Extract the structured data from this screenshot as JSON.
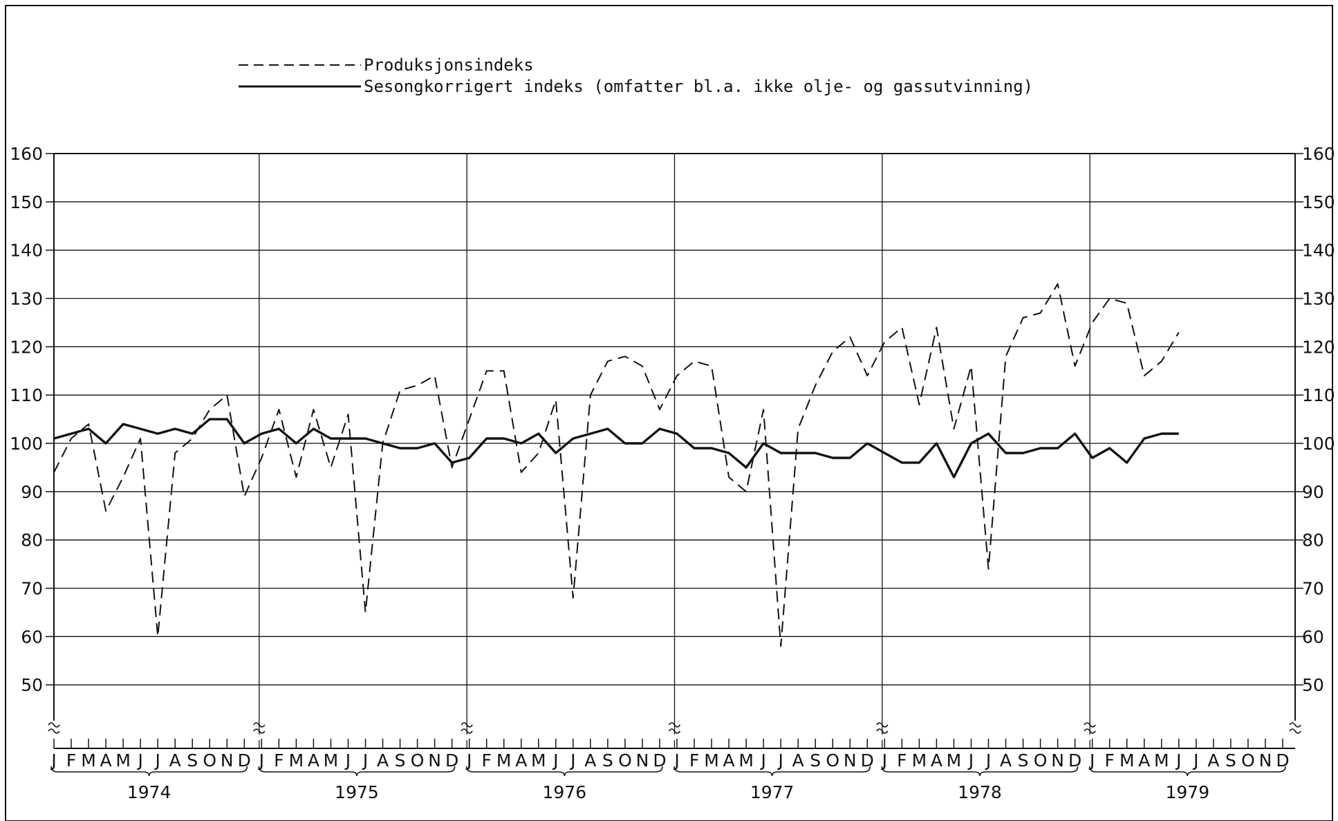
{
  "legend": {
    "dashed_label": "Produksjonsindeks",
    "solid_label": "Sesongkorrigert indeks (omfatter bl.a. ikke olje- og gassutvinning)"
  },
  "colors": {
    "ink": "#111111",
    "background": "#ffffff"
  },
  "chart_data": {
    "type": "line",
    "title": "",
    "xlabel": "",
    "ylabel": "",
    "ylim": [
      40,
      160
    ],
    "y_ticks": [
      50,
      60,
      70,
      80,
      90,
      100,
      110,
      120,
      130,
      140,
      150,
      160
    ],
    "y_tick_labels": [
      "50",
      "60",
      "70",
      "80",
      "90",
      "100",
      "110",
      "120",
      "130",
      "140",
      "150",
      "160"
    ],
    "grid": true,
    "axis_break": "between 40 and 50 on the y axis",
    "legend_position": "top-left",
    "years": [
      "1974",
      "1975",
      "1976",
      "1977",
      "1978",
      "1979"
    ],
    "month_labels": [
      "J",
      "F",
      "M",
      "A",
      "M",
      "J",
      "J",
      "A",
      "S",
      "O",
      "N",
      "D"
    ],
    "series": [
      {
        "name": "Produksjonsindeks",
        "style": "dashed",
        "values": [
          94,
          101,
          104,
          86,
          93,
          101,
          60,
          98,
          101,
          107,
          110,
          89,
          97,
          107,
          93,
          107,
          95,
          106,
          65,
          100,
          111,
          112,
          114,
          95,
          105,
          115,
          115,
          94,
          98,
          109,
          68,
          110,
          117,
          118,
          116,
          107,
          114,
          117,
          116,
          93,
          90,
          107,
          58,
          103,
          112,
          119,
          122,
          114,
          121,
          124,
          108,
          124,
          103,
          116,
          74,
          118,
          126,
          127,
          133,
          116,
          125,
          130,
          129,
          114,
          117,
          123
        ]
      },
      {
        "name": "Sesongkorrigert indeks (omfatter bl.a. ikke olje- og gassutvinning)",
        "style": "solid",
        "values": [
          101,
          102,
          103,
          100,
          104,
          103,
          102,
          103,
          102,
          105,
          105,
          100,
          102,
          103,
          100,
          103,
          101,
          101,
          101,
          100,
          99,
          99,
          100,
          96,
          97,
          101,
          101,
          100,
          102,
          98,
          101,
          102,
          103,
          100,
          100,
          103,
          102,
          99,
          99,
          98,
          95,
          100,
          98,
          98,
          98,
          97,
          97,
          100,
          98,
          96,
          96,
          100,
          93,
          100,
          102,
          98,
          98,
          99,
          99,
          102,
          97,
          99,
          96,
          101,
          102,
          102
        ]
      }
    ]
  }
}
